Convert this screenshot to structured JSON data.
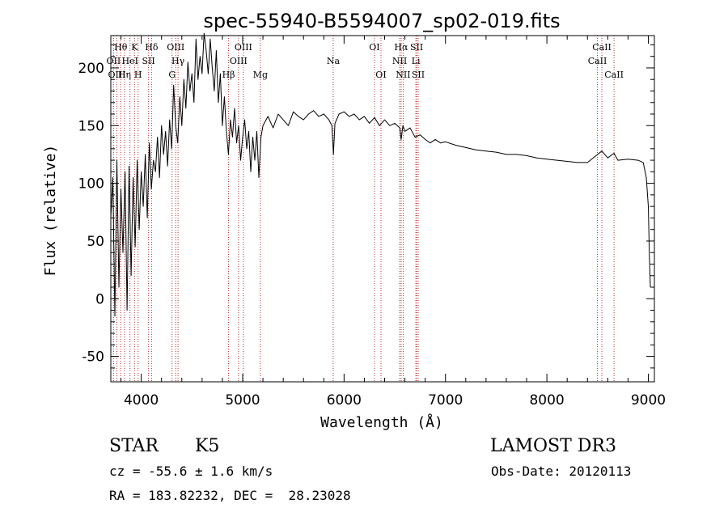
{
  "chart_data": {
    "type": "line",
    "title": "spec-55940-B5594007_sp02-019.fits",
    "xlabel": "Wavelength (Å)",
    "ylabel": "Flux (relative)",
    "xlim": [
      3700,
      9060
    ],
    "ylim": [
      -72,
      228
    ],
    "xticks": [
      4000,
      5000,
      6000,
      7000,
      8000,
      9000
    ],
    "yticks": [
      -50,
      0,
      50,
      100,
      150,
      200
    ],
    "x_tick_labels": [
      "4000",
      "5000",
      "6000",
      "7000",
      "8000",
      "9000"
    ],
    "y_tick_labels": [
      "-50",
      "0",
      "50",
      "100",
      "150",
      "200"
    ],
    "series": [
      {
        "name": "flux",
        "x": [
          3700,
          3720,
          3740,
          3760,
          3780,
          3800,
          3820,
          3840,
          3860,
          3880,
          3900,
          3920,
          3940,
          3960,
          3980,
          4000,
          4020,
          4040,
          4060,
          4080,
          4100,
          4120,
          4140,
          4160,
          4180,
          4200,
          4220,
          4240,
          4260,
          4280,
          4300,
          4320,
          4340,
          4360,
          4380,
          4400,
          4420,
          4440,
          4460,
          4480,
          4500,
          4520,
          4540,
          4560,
          4580,
          4600,
          4620,
          4640,
          4660,
          4680,
          4700,
          4720,
          4740,
          4760,
          4780,
          4800,
          4820,
          4840,
          4860,
          4880,
          4900,
          4920,
          4940,
          4960,
          4980,
          5000,
          5020,
          5040,
          5060,
          5080,
          5100,
          5120,
          5140,
          5160,
          5180,
          5200,
          5250,
          5300,
          5350,
          5400,
          5450,
          5500,
          5550,
          5600,
          5650,
          5700,
          5750,
          5800,
          5850,
          5880,
          5895,
          5910,
          5950,
          6000,
          6050,
          6100,
          6150,
          6200,
          6250,
          6300,
          6350,
          6400,
          6450,
          6500,
          6550,
          6563,
          6580,
          6600,
          6650,
          6700,
          6750,
          6800,
          6850,
          6900,
          6950,
          7000,
          7100,
          7200,
          7300,
          7400,
          7500,
          7600,
          7700,
          7800,
          7900,
          8000,
          8100,
          8200,
          8300,
          8400,
          8500,
          8542,
          8600,
          8662,
          8700,
          8800,
          8900,
          8950,
          8980,
          9000,
          9010,
          9020
        ],
        "y": [
          70,
          105,
          -15,
          120,
          10,
          95,
          40,
          110,
          -10,
          115,
          20,
          105,
          45,
          120,
          60,
          110,
          80,
          125,
          70,
          135,
          95,
          120,
          110,
          140,
          105,
          150,
          125,
          145,
          115,
          155,
          130,
          185,
          150,
          135,
          175,
          150,
          190,
          165,
          205,
          180,
          195,
          170,
          225,
          190,
          210,
          195,
          230,
          215,
          195,
          225,
          200,
          180,
          215,
          170,
          195,
          150,
          175,
          145,
          125,
          155,
          140,
          165,
          135,
          150,
          120,
          140,
          155,
          130,
          145,
          110,
          140,
          120,
          145,
          105,
          140,
          150,
          158,
          148,
          160,
          155,
          150,
          162,
          158,
          155,
          160,
          163,
          158,
          160,
          155,
          150,
          125,
          152,
          160,
          162,
          158,
          160,
          155,
          158,
          152,
          157,
          150,
          155,
          150,
          152,
          148,
          138,
          150,
          145,
          148,
          140,
          142,
          138,
          135,
          138,
          135,
          136,
          133,
          131,
          129,
          128,
          127,
          125,
          125,
          124,
          122,
          121,
          120,
          119,
          118,
          118,
          125,
          128,
          122,
          126,
          120,
          121,
          120,
          118,
          105,
          80,
          40,
          10
        ]
      }
    ],
    "lines": [
      {
        "label": "Hθ",
        "x": 3798,
        "row": 1
      },
      {
        "label": "OII",
        "x": 3727,
        "row": 2
      },
      {
        "label": "OIII",
        "x": 3760,
        "row": 3
      },
      {
        "label": "Hη",
        "x": 3835,
        "row": 3
      },
      {
        "label": "HeI",
        "x": 3889,
        "row": 2
      },
      {
        "label": "K",
        "x": 3934,
        "row": 1
      },
      {
        "label": "H",
        "x": 3969,
        "row": 3
      },
      {
        "label": "SII",
        "x": 4072,
        "row": 2
      },
      {
        "label": "Hδ",
        "x": 4102,
        "row": 1
      },
      {
        "label": "OIII",
        "x": 4340,
        "row": 1
      },
      {
        "label": "Hγ",
        "x": 4363,
        "row": 2
      },
      {
        "label": "G",
        "x": 4304,
        "row": 3
      },
      {
        "label": "Hβ",
        "x": 4861,
        "row": 3
      },
      {
        "label": "OIII",
        "x": 5007,
        "row": 1
      },
      {
        "label": "OIII",
        "x": 4959,
        "row": 2
      },
      {
        "label": "Mg",
        "x": 5175,
        "row": 3
      },
      {
        "label": "Na",
        "x": 5893,
        "row": 2
      },
      {
        "label": "OI",
        "x": 6300,
        "row": 1
      },
      {
        "label": "OI",
        "x": 6364,
        "row": 3
      },
      {
        "label": "Hα",
        "x": 6563,
        "row": 1
      },
      {
        "label": "NII",
        "x": 6548,
        "row": 2
      },
      {
        "label": "NII",
        "x": 6583,
        "row": 3
      },
      {
        "label": "SII",
        "x": 6716,
        "row": 1
      },
      {
        "label": "Li",
        "x": 6708,
        "row": 2
      },
      {
        "label": "SII",
        "x": 6731,
        "row": 3
      },
      {
        "label": "CaII",
        "x": 8542,
        "row": 1
      },
      {
        "label": "CaII",
        "x": 8498,
        "row": 2
      },
      {
        "label": "CaII",
        "x": 8662,
        "row": 3
      }
    ]
  },
  "info": {
    "object_class": "STAR",
    "subclass": "K5",
    "survey": "LAMOST DR3",
    "cz": "cz = -55.6 ± 1.6 km/s",
    "obs_date": "Obs-Date: 20120113",
    "coords": "RA = 183.82232, DEC =  28.23028"
  },
  "colors": {
    "line_marker": "#b03030",
    "spectrum": "#000000"
  }
}
